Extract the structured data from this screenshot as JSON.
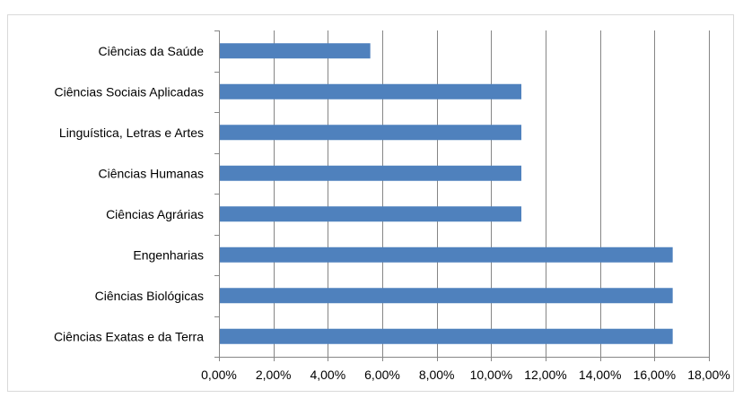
{
  "chart_data": {
    "type": "bar",
    "orientation": "horizontal",
    "categories": [
      "Ciências da Saúde",
      "Ciências Sociais Aplicadas",
      "Linguística, Letras e Artes",
      "Ciências Humanas",
      "Ciências Agrárias",
      "Engenharias",
      "Ciências Biológicas",
      "Ciências Exatas e da Terra"
    ],
    "values": [
      5.56,
      11.11,
      11.11,
      11.11,
      11.11,
      16.67,
      16.67,
      16.67
    ],
    "xlim": [
      0,
      18
    ],
    "x_ticks": [
      0,
      2,
      4,
      6,
      8,
      10,
      12,
      14,
      16,
      18
    ],
    "x_tick_labels": [
      "0,00%",
      "2,00%",
      "4,00%",
      "6,00%",
      "8,00%",
      "10,00%",
      "12,00%",
      "14,00%",
      "16,00%",
      "18,00%"
    ],
    "title": "",
    "xlabel": "",
    "ylabel": "",
    "grid": "vertical",
    "legend": "none",
    "bar_color": "#4f81bd",
    "grid_color": "#868686"
  }
}
